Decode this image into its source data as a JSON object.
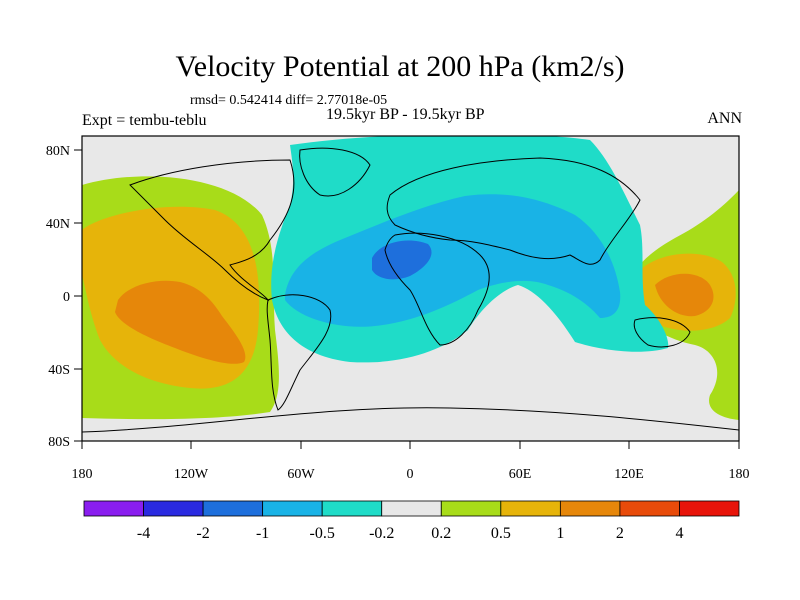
{
  "title": "Velocity Potential at 200 hPa (km2/s)",
  "stats_line": "rmsd= 0.542414 diff= 2.77018e-05",
  "experiment": "Expt = tembu-teblu",
  "period": "19.5kyr BP - 19.5kyr BP",
  "season": "ANN",
  "lat_labels": [
    "80N",
    "40N",
    "0",
    "40S",
    "80S"
  ],
  "lon_labels": [
    "180",
    "120W",
    "60W",
    "0",
    "60E",
    "120E",
    "180"
  ],
  "colorbar": {
    "colors": [
      "#8a1eef",
      "#2a2ae0",
      "#1e6fdc",
      "#19b3e6",
      "#1fdcc8",
      "#e8e8e8",
      "#a8dc19",
      "#e6b40a",
      "#e6870a",
      "#e84b0a",
      "#e8140a"
    ],
    "labels": [
      "-4",
      "-2",
      "-1",
      "-0.5",
      "-0.2",
      "0.2",
      "0.5",
      "1",
      "2",
      "4"
    ]
  }
}
